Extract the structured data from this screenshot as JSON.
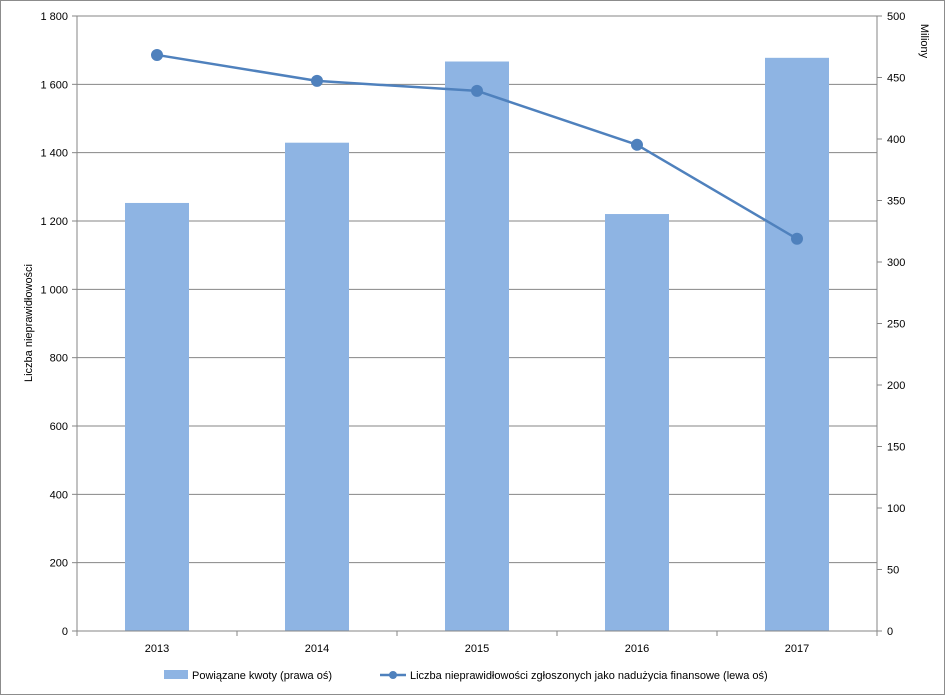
{
  "chart_data": {
    "type": "bar+line",
    "categories": [
      "2013",
      "2014",
      "2015",
      "2016",
      "2017"
    ],
    "series": [
      {
        "name": "Powiązane kwoty (prawa oś)",
        "type": "bar",
        "axis": "right",
        "values": [
          348,
          397,
          463,
          339,
          466
        ],
        "color": "#8eb4e3"
      },
      {
        "name": "Liczba nieprawidłowości zgłoszonych jako nadużycia finansowe (lewa oś)",
        "type": "line",
        "axis": "left",
        "values": [
          1686,
          1610,
          1581,
          1423,
          1148
        ],
        "color": "#4f81bd"
      }
    ],
    "left_axis": {
      "title": "Liczba nieprawidłowości",
      "min": 0,
      "max": 1800,
      "step": 200,
      "tick_labels": [
        "0",
        "200",
        "400",
        "600",
        "800",
        "1 000",
        "1 200",
        "1 400",
        "1 600",
        "1 800"
      ]
    },
    "right_axis": {
      "title": "Miliony",
      "min": 0,
      "max": 500,
      "step": 50,
      "tick_labels": [
        "0",
        "50",
        "100",
        "150",
        "200",
        "250",
        "300",
        "350",
        "400",
        "450",
        "500"
      ]
    },
    "grid": true,
    "legend": "bottom"
  }
}
